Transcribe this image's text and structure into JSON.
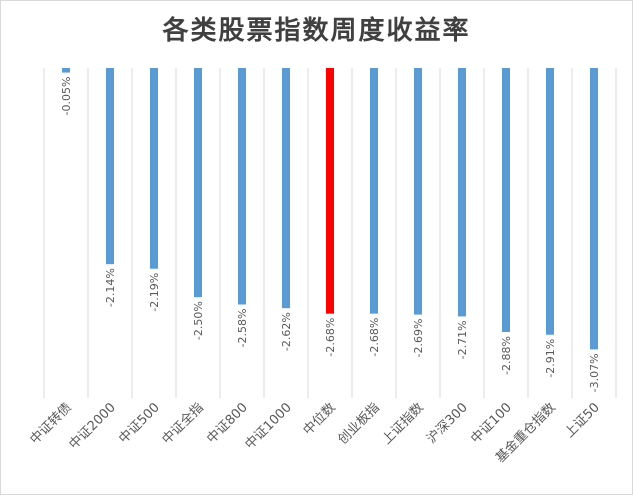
{
  "chart_data": {
    "type": "bar",
    "title": "各类股票指数周度收益率",
    "categories": [
      "中证转债",
      "中证2000",
      "中证500",
      "中证全指",
      "中证800",
      "中证1000",
      "中位数",
      "创业板指",
      "上证指数",
      "沪深300",
      "中证100",
      "基金重仓指数",
      "上证50"
    ],
    "values": [
      -0.05,
      -2.14,
      -2.19,
      -2.5,
      -2.58,
      -2.62,
      -2.68,
      -2.68,
      -2.69,
      -2.71,
      -2.88,
      -2.91,
      -3.07
    ],
    "value_labels": [
      "-0.05%",
      "-2.14%",
      "-2.19%",
      "-2.50%",
      "-2.58%",
      "-2.62%",
      "-2.68%",
      "-2.68%",
      "-2.69%",
      "-2.71%",
      "-2.88%",
      "-2.91%",
      "-3.07%"
    ],
    "ylim": [
      -3.6,
      0
    ],
    "grid": "vertical",
    "legend": "none",
    "colors": {
      "bar": "#5b9bd5",
      "highlight": "#ff0000",
      "grid": "#d9d9d9",
      "text": "#595959"
    },
    "highlight_category": "中位数"
  }
}
